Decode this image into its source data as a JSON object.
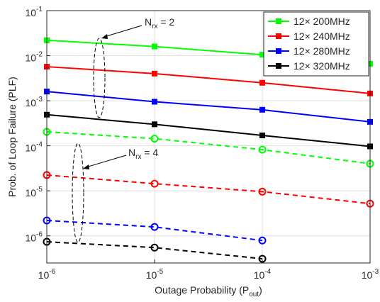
{
  "chart_data": {
    "type": "line",
    "xlabel": {
      "text": "Outage Probability (P",
      "subscript": "out",
      "suffix": ")"
    },
    "ylabel": "Prob. of Loop Failure (PLF)",
    "log_x": true,
    "log_y": true,
    "grid": true,
    "legend": "upper right",
    "x": [
      1e-06,
      1e-05,
      0.0001,
      0.001
    ],
    "xlim": [
      1e-06,
      0.001
    ],
    "xticks": [
      {
        "value": 1e-06,
        "label": "10",
        "exponent": "-6"
      },
      {
        "value": 1e-05,
        "label": "10",
        "exponent": "-5"
      },
      {
        "value": 0.0001,
        "label": "10",
        "exponent": "-4"
      },
      {
        "value": 0.001,
        "label": "10",
        "exponent": "-3"
      }
    ],
    "ylim": [
      2.5e-07,
      0.1
    ],
    "yticks": [
      {
        "value": 0.1,
        "label": "10",
        "exponent": "-1"
      },
      {
        "value": 0.01,
        "label": "10",
        "exponent": "-2"
      },
      {
        "value": 0.001,
        "label": "10",
        "exponent": "-3"
      },
      {
        "value": 0.0001,
        "label": "10",
        "exponent": "-4"
      },
      {
        "value": 1e-05,
        "label": "10",
        "exponent": "-5"
      },
      {
        "value": 1e-06,
        "label": "10",
        "exponent": "-6"
      }
    ],
    "series": [
      {
        "name": "12× 200MHz",
        "color": "#00ff00",
        "marker": "square",
        "dashed": false,
        "values": [
          0.022,
          0.016,
          0.0105,
          0.0066
        ]
      },
      {
        "name": "12× 240MHz",
        "color": "#ff0000",
        "marker": "square",
        "dashed": false,
        "values": [
          0.0057,
          0.004,
          0.0025,
          0.00145
        ]
      },
      {
        "name": "12× 280MHz",
        "color": "#0000ff",
        "marker": "square",
        "dashed": false,
        "values": [
          0.0016,
          0.00095,
          0.00063,
          0.00034
        ]
      },
      {
        "name": "12× 320MHz",
        "color": "#000000",
        "marker": "square",
        "dashed": false,
        "values": [
          0.00049,
          0.0003,
          0.00017,
          9.7e-05
        ]
      },
      {
        "color": "#00ff00",
        "marker": "circle",
        "dashed": true,
        "values": [
          0.000204,
          0.000144,
          8.2e-05,
          4e-05
        ]
      },
      {
        "color": "#ff0000",
        "marker": "circle",
        "dashed": true,
        "values": [
          2.24e-05,
          1.44e-05,
          9.6e-06,
          5.2e-06
        ]
      },
      {
        "color": "#0000ff",
        "marker": "circle",
        "dashed": true,
        "values": [
          2.2e-06,
          1.58e-06,
          7.9e-07,
          null
        ]
      },
      {
        "color": "#000000",
        "marker": "circle",
        "dashed": true,
        "values": [
          7.4e-07,
          5.5e-07,
          3.1e-07,
          null
        ]
      }
    ],
    "annotations": [
      {
        "text": "N",
        "subscript": "rx",
        "suffix": " = 2"
      },
      {
        "text": "N",
        "subscript": "rx",
        "suffix": " = 4"
      }
    ]
  }
}
